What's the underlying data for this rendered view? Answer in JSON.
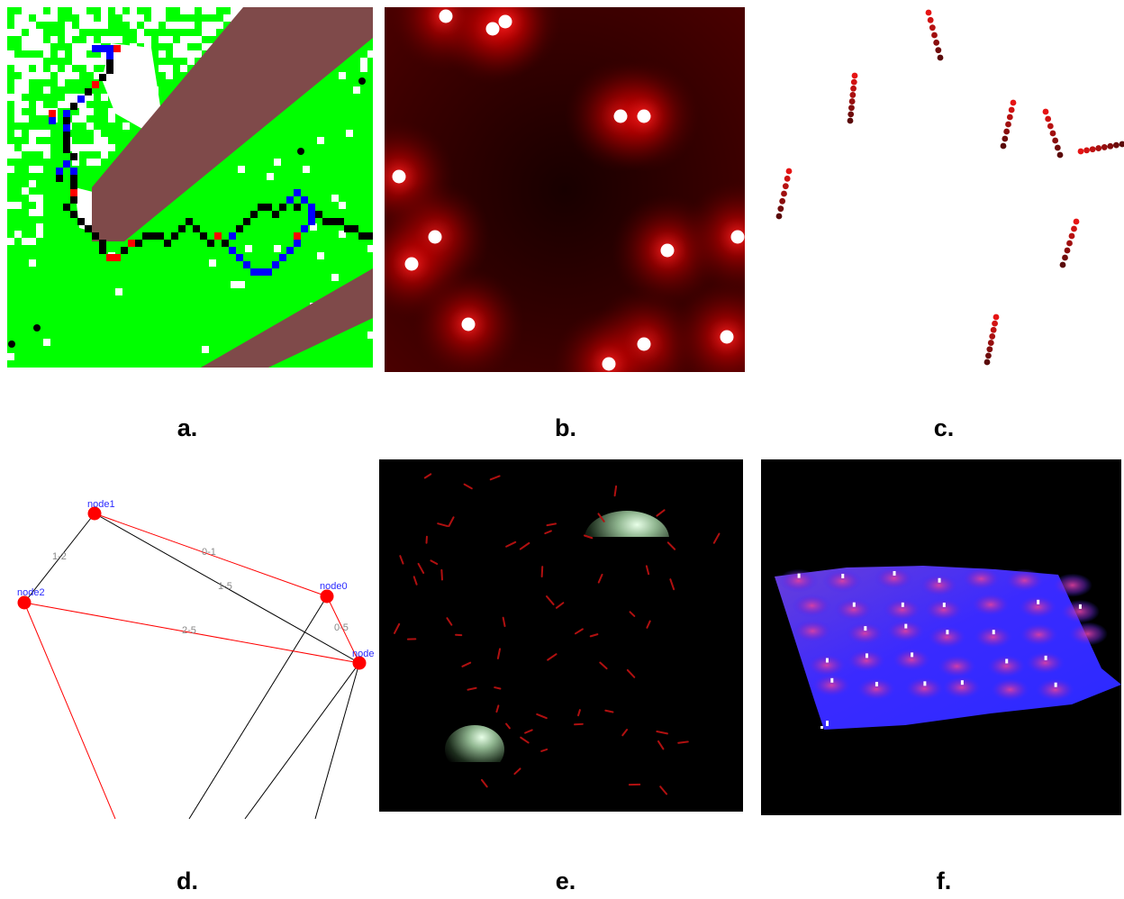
{
  "captions": [
    "a.",
    "b.",
    "c.",
    "d.",
    "e.",
    "f."
  ],
  "colors": {
    "grass": "#00ff00",
    "terrain": "#7f4a4a",
    "path_black": "#000000",
    "path_blue": "#0000ff",
    "path_red": "#ff0000",
    "bg_dark": "#000000",
    "glow_red": "#c00000",
    "surface_blue": "#2a2aff"
  },
  "network": {
    "nodes": [
      {
        "id": "node1",
        "label": "node1"
      },
      {
        "id": "node0",
        "label": "node0"
      },
      {
        "id": "node2",
        "label": "node2"
      },
      {
        "id": "node5",
        "label": "node"
      }
    ],
    "edges": [
      {
        "from": "node1",
        "to": "node2",
        "label": "1-2",
        "color": "#000000"
      },
      {
        "from": "node1",
        "to": "node0",
        "label": "0-1",
        "color": "#ff0000"
      },
      {
        "from": "node1",
        "to": "node5",
        "label": "1-5",
        "color": "#000000"
      },
      {
        "from": "node0",
        "to": "node5",
        "label": "0-5",
        "color": "#ff0000"
      },
      {
        "from": "node2",
        "to": "node5",
        "label": "2-5",
        "color": "#ff0000"
      }
    ]
  }
}
